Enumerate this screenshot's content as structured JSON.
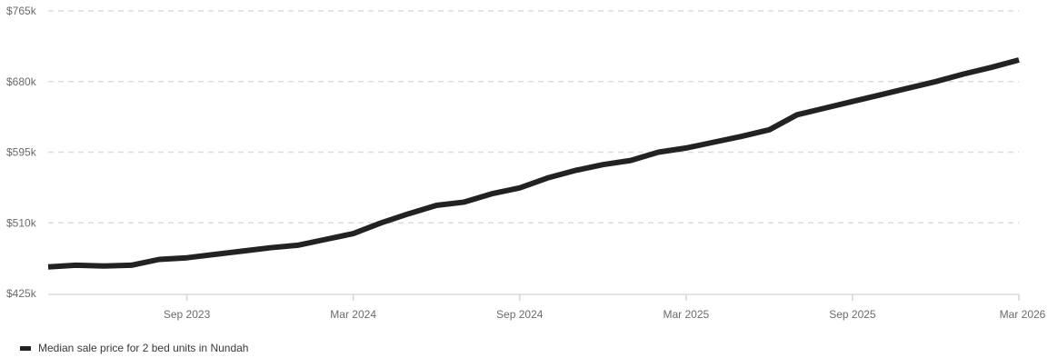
{
  "chart_data": {
    "type": "line",
    "x": [
      "2023-04",
      "2023-05",
      "2023-06",
      "2023-07",
      "2023-08",
      "2023-09",
      "2023-10",
      "2023-11",
      "2023-12",
      "2024-01",
      "2024-02",
      "2024-03",
      "2024-04",
      "2024-05",
      "2024-06",
      "2024-07",
      "2024-08",
      "2024-09",
      "2024-10",
      "2024-11",
      "2024-12",
      "2025-01",
      "2025-02",
      "2025-03",
      "2025-04",
      "2025-05",
      "2025-06",
      "2025-07",
      "2025-08",
      "2025-09",
      "2025-10",
      "2025-11",
      "2025-12",
      "2026-01",
      "2026-02",
      "2026-03"
    ],
    "series": [
      {
        "name": "Median sale price for 2 bed units in Nundah",
        "values": [
          457,
          459,
          458,
          459,
          466,
          468,
          472,
          476,
          480,
          483,
          490,
          497,
          510,
          521,
          531,
          535,
          545,
          552,
          564,
          573,
          580,
          585,
          595,
          600,
          607,
          614,
          622,
          640,
          648,
          656,
          664,
          672,
          680,
          689,
          697,
          706
        ],
        "color": "#222222"
      }
    ],
    "x_tick_labels": [
      "Sep 2023",
      "Mar 2024",
      "Sep 2024",
      "Mar 2025",
      "Sep 2025",
      "Mar 2026"
    ],
    "x_tick_values": [
      "2023-09",
      "2024-03",
      "2024-09",
      "2025-03",
      "2025-09",
      "2026-03"
    ],
    "y_tick_labels": [
      "$425k",
      "$510k",
      "$595k",
      "$680k",
      "$765k"
    ],
    "y_tick_values": [
      425,
      510,
      595,
      680,
      765
    ],
    "ylim": [
      425,
      765
    ],
    "grid": true,
    "legend_position": "bottom-left",
    "legend_label": "Median sale price for 2 bed units in Nundah"
  }
}
